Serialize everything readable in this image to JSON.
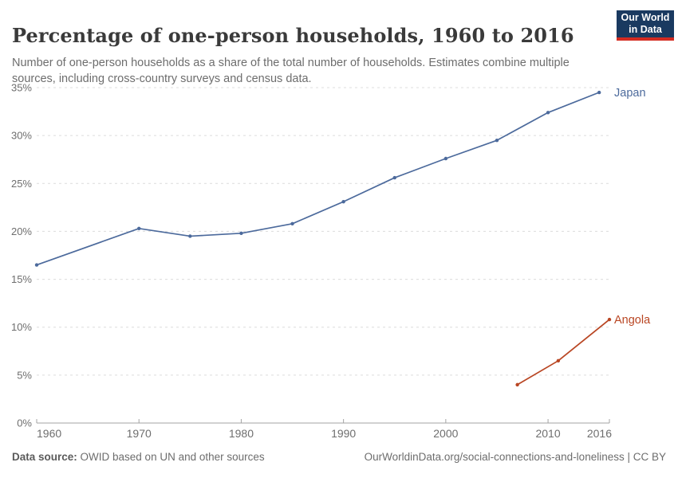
{
  "header": {
    "title": "Percentage of one-person households, 1960 to 2016",
    "subtitle": "Number of one-person households as a share of the total number of households. Estimates combine multiple sources, including cross-country surveys and census data."
  },
  "logo": {
    "line1": "Our World",
    "line2": "in Data",
    "bg_color": "#1a3a60",
    "accent_color": "#d42b21"
  },
  "chart_data": {
    "type": "line",
    "title": "Percentage of one-person households, 1960 to 2016",
    "xlabel": "",
    "ylabel": "",
    "xlim": [
      1960,
      2016
    ],
    "ylim": [
      0,
      35
    ],
    "grid": "horizontal-dashed",
    "legend_position": "line-end-labels",
    "x_ticks": [
      1960,
      1970,
      1980,
      1990,
      2000,
      2010,
      2016
    ],
    "x_tick_labels": [
      "1960",
      "1970",
      "1980",
      "1990",
      "2000",
      "2010",
      "2016"
    ],
    "y_ticks": [
      0,
      5,
      10,
      15,
      20,
      25,
      30,
      35
    ],
    "y_tick_labels": [
      "0%",
      "5%",
      "10%",
      "15%",
      "20%",
      "25%",
      "30%",
      "35%"
    ],
    "series": [
      {
        "name": "Japan",
        "color": "#4C6A9C",
        "points": [
          [
            1960,
            16.5
          ],
          [
            1970,
            20.3
          ],
          [
            1975,
            19.5
          ],
          [
            1980,
            19.8
          ],
          [
            1985,
            20.8
          ],
          [
            1990,
            23.1
          ],
          [
            1995,
            25.6
          ],
          [
            2000,
            27.6
          ],
          [
            2005,
            29.5
          ],
          [
            2010,
            32.4
          ],
          [
            2015,
            34.5
          ]
        ]
      },
      {
        "name": "Angola",
        "color": "#B94623",
        "points": [
          [
            2007,
            4.0
          ],
          [
            2011,
            6.5
          ],
          [
            2016,
            10.8
          ]
        ]
      }
    ],
    "colors": {
      "gridline": "#dcdcdc",
      "axis": "#a3a3a3",
      "tick_label": "#6e6e6e"
    }
  },
  "footer": {
    "datasource_label": "Data source:",
    "datasource_text": " OWID based on UN and other sources",
    "link_text": "OurWorldinData.org/social-connections-and-loneliness | CC BY"
  }
}
